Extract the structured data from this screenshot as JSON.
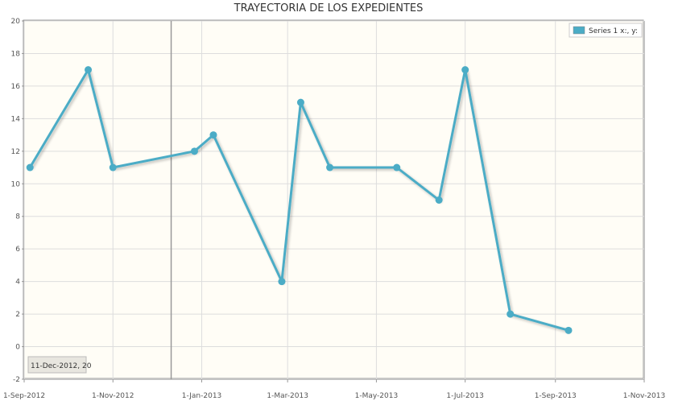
{
  "chart_data": {
    "type": "line",
    "title": "TRAYECTORIA DE LOS EXPEDIENTES",
    "xlabel": "",
    "ylabel": "",
    "x_ticks": [
      "1-Sep-2012",
      "1-Nov-2012",
      "1-Jan-2013",
      "1-Mar-2013",
      "1-May-2013",
      "1-Jul-2013",
      "1-Sep-2013",
      "1-Nov-2013"
    ],
    "xlim": [
      "2012-09-01",
      "2013-11-01"
    ],
    "ylim": [
      -2,
      20
    ],
    "y_ticks": [
      -2,
      0,
      2,
      4,
      6,
      8,
      10,
      12,
      14,
      16,
      18,
      20
    ],
    "grid": true,
    "legend_position": "top-right",
    "series": [
      {
        "name": "Series 1 x:, y:",
        "color": "#4bacc6",
        "points": [
          {
            "x": "2012-09-05",
            "y": 11
          },
          {
            "x": "2012-10-15",
            "y": 17
          },
          {
            "x": "2012-11-01",
            "y": 11
          },
          {
            "x": "2012-12-27",
            "y": 12
          },
          {
            "x": "2013-01-09",
            "y": 13
          },
          {
            "x": "2013-02-25",
            "y": 4
          },
          {
            "x": "2013-03-10",
            "y": 15
          },
          {
            "x": "2013-03-30",
            "y": 11
          },
          {
            "x": "2013-05-15",
            "y": 11
          },
          {
            "x": "2013-06-13",
            "y": 9
          },
          {
            "x": "2013-07-01",
            "y": 17
          },
          {
            "x": "2013-08-01",
            "y": 2
          },
          {
            "x": "2013-09-10",
            "y": 1
          }
        ]
      }
    ],
    "cursor": {
      "x": "2012-12-11",
      "label": "11-Dec-2012, 20"
    }
  }
}
